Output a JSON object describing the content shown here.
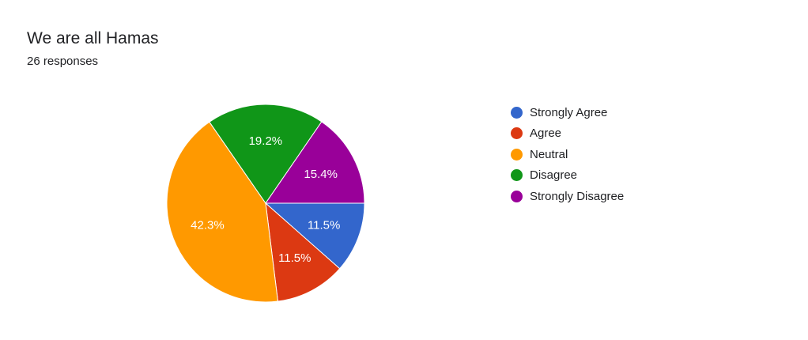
{
  "form": {
    "title": "We are all Hamas",
    "responses": "26 responses"
  },
  "chart_data": {
    "type": "pie",
    "categories": [
      "Strongly Agree",
      "Agree",
      "Neutral",
      "Disagree",
      "Strongly Disagree"
    ],
    "values": [
      11.5,
      11.5,
      42.3,
      19.2,
      15.4
    ],
    "labels": [
      "11.5%",
      "11.5%",
      "42.3%",
      "19.2%",
      "15.4%"
    ],
    "colors": [
      "#3366cc",
      "#dc3912",
      "#ff9900",
      "#109618",
      "#990099"
    ],
    "legend": "right",
    "start_angle_deg": 90,
    "direction": "clockwise"
  }
}
